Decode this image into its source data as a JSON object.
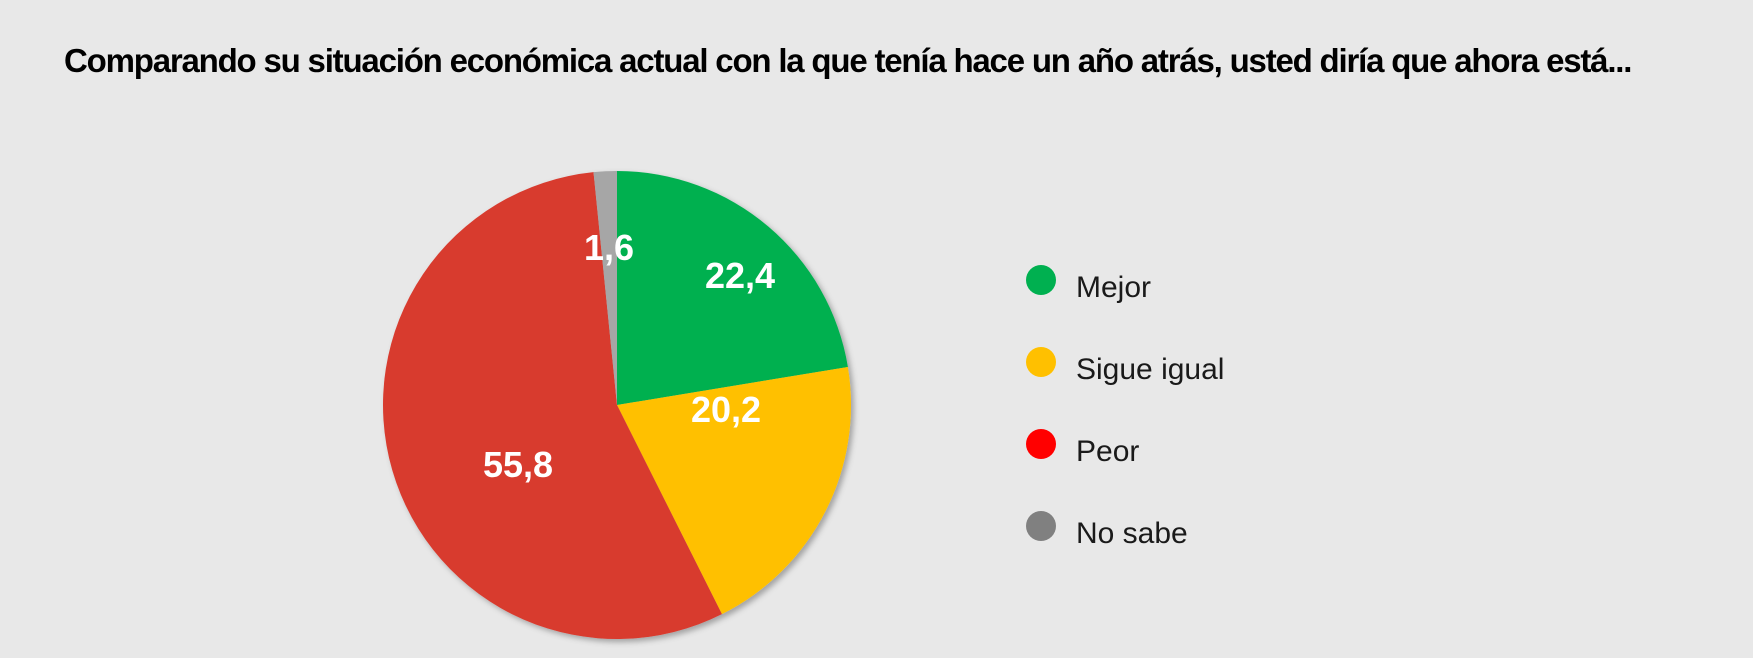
{
  "chart_data": {
    "type": "pie",
    "title": "Comparando su situación económica actual con la que tenía hace un año atrás,  usted diría que ahora está...",
    "slices": [
      {
        "label": "Mejor",
        "value": 22.4,
        "value_label": "22,4",
        "color": "#00b050"
      },
      {
        "label": "Sigue igual",
        "value": 20.2,
        "value_label": "20,2",
        "color": "#ffc000"
      },
      {
        "label": "Peor",
        "value": 55.8,
        "value_label": "55,8",
        "color": "#d83a2f"
      },
      {
        "label": "No sabe",
        "value": 1.6,
        "value_label": "1,6",
        "color": "#a6a6a6"
      }
    ],
    "legend": {
      "position": "right",
      "items": [
        {
          "label": "Mejor",
          "color": "#00b050"
        },
        {
          "label": "Sigue igual",
          "color": "#ffc000"
        },
        {
          "label": "Peor",
          "color": "#ff0000"
        },
        {
          "label": "No sabe",
          "color": "#808080"
        }
      ]
    },
    "start": "12 o'clock",
    "direction": "clockwise"
  }
}
